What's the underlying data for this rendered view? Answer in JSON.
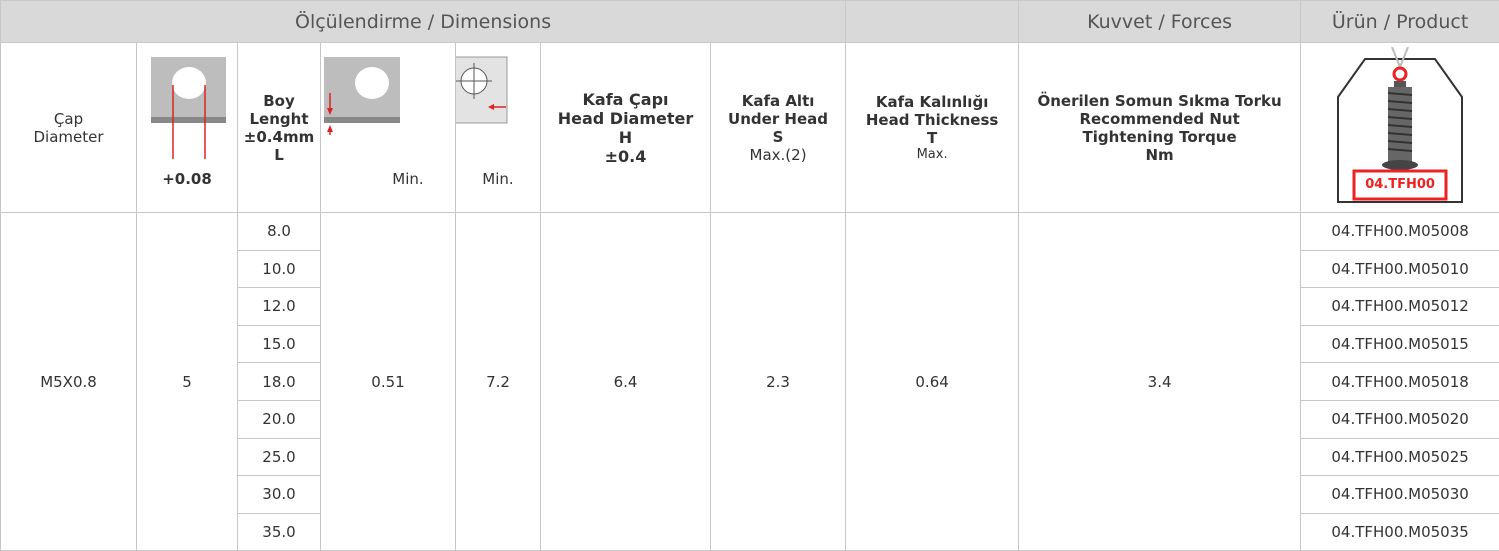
{
  "header": {
    "groups": [
      "Ölçülendirme / Dimensions",
      "Kuvvet / Forces",
      "Ürün / Product"
    ],
    "columns": [
      {
        "lines": [
          "Çap",
          "Diameter"
        ]
      },
      {
        "lines": [
          "+0.08"
        ]
      },
      {
        "lines": [
          "Boy",
          "Lenght",
          "±0.4mm",
          "L"
        ]
      },
      {
        "lines": [
          "Min."
        ]
      },
      {
        "lines": [
          "Min."
        ]
      },
      {
        "lines": [
          "Kafa Çapı",
          "Head Diameter",
          "H",
          "±0.4"
        ]
      },
      {
        "lines": [
          "Kafa Altı",
          "Under Head",
          "S",
          "Max.(2)"
        ]
      },
      {
        "lines": [
          "Kafa Kalınlığı",
          "Head Thickness",
          "T",
          "Max."
        ]
      },
      {
        "lines": [
          "Önerilen Somun Sıkma Torku",
          "Recommended Nut",
          "Tightening Torque",
          "Nm"
        ]
      },
      {
        "image_label": "04.TFH00"
      }
    ]
  },
  "table": {
    "diameter": "M5X0.8",
    "hole": "5",
    "lengths": [
      "8.0",
      "10.0",
      "12.0",
      "15.0",
      "18.0",
      "20.0",
      "25.0",
      "30.0",
      "35.0"
    ],
    "min_a": "0.51",
    "min_b": "7.2",
    "head_diameter": "6.4",
    "under_head": "2.3",
    "head_thickness": "0.64",
    "torque": "3.4",
    "products": [
      "04.TFH00.M05008",
      "04.TFH00.M05010",
      "04.TFH00.M05012",
      "04.TFH00.M05015",
      "04.TFH00.M05018",
      "04.TFH00.M05020",
      "04.TFH00.M05025",
      "04.TFH00.M05030",
      "04.TFH00.M05035"
    ]
  }
}
